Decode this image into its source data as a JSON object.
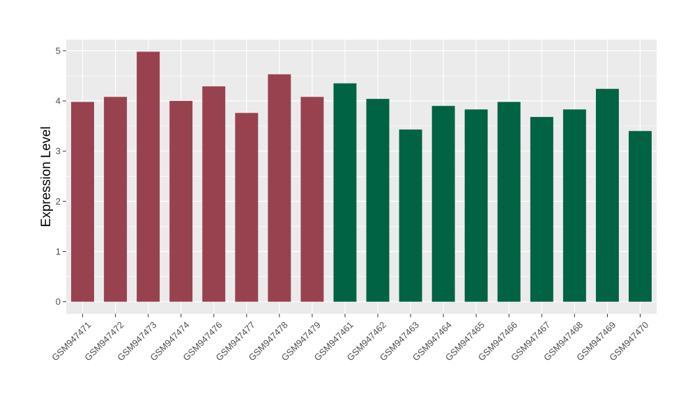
{
  "chart_data": {
    "type": "bar",
    "title": "",
    "xlabel": "",
    "ylabel": "Expression Level",
    "ylim": [
      0,
      5.2
    ],
    "yticks": [
      0,
      1,
      2,
      3,
      4,
      5
    ],
    "grid": true,
    "legend": "none",
    "panel_background": "#ebebeb",
    "grid_color": "#ffffff",
    "categories": [
      "GSM947471",
      "GSM947472",
      "GSM947473",
      "GSM947474",
      "GSM947476",
      "GSM947477",
      "GSM947478",
      "GSM947479",
      "GSM947461",
      "GSM947462",
      "GSM947463",
      "GSM947464",
      "GSM947465",
      "GSM947466",
      "GSM947467",
      "GSM947468",
      "GSM947469",
      "GSM947470"
    ],
    "values": [
      3.98,
      4.08,
      4.98,
      4.0,
      4.29,
      3.76,
      4.53,
      4.08,
      4.35,
      4.04,
      3.43,
      3.9,
      3.83,
      3.98,
      3.68,
      3.83,
      4.24,
      3.4
    ],
    "colors": [
      "#99424f",
      "#99424f",
      "#99424f",
      "#99424f",
      "#99424f",
      "#99424f",
      "#99424f",
      "#99424f",
      "#006343",
      "#006343",
      "#006343",
      "#006343",
      "#006343",
      "#006343",
      "#006343",
      "#006343",
      "#006343",
      "#006343"
    ]
  }
}
